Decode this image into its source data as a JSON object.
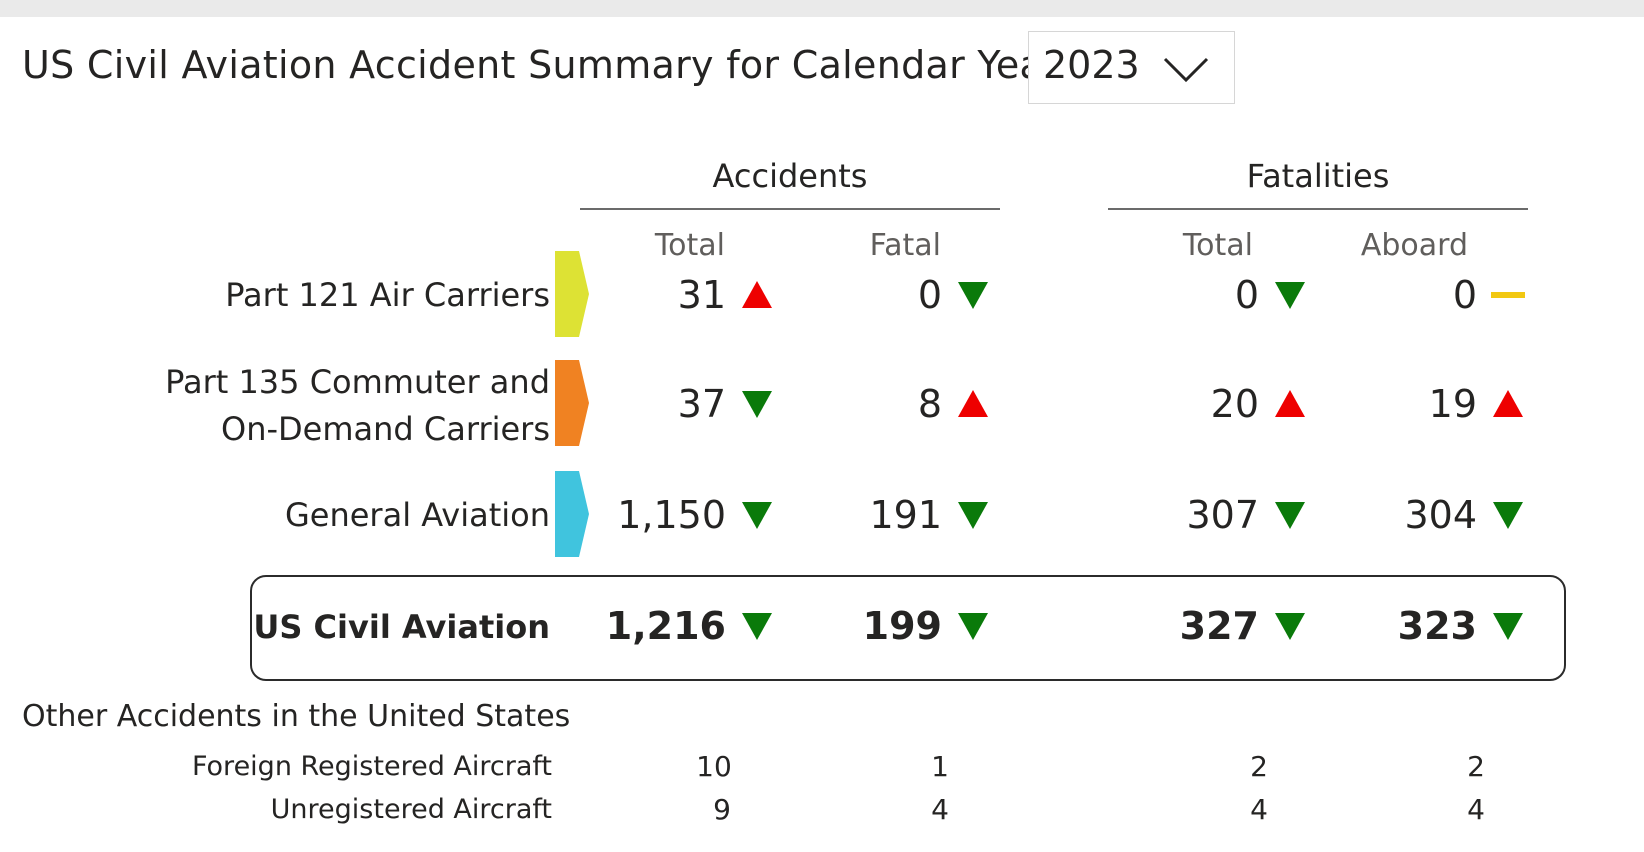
{
  "header": {
    "title": "US Civil Aviation Accident Summary for Calendar Year",
    "year_select": {
      "selected": "2023"
    }
  },
  "groups": {
    "accidents": "Accidents",
    "fatalities": "Fatalities"
  },
  "columns": {
    "acc_total": "Total",
    "acc_fatal": "Fatal",
    "fat_total": "Total",
    "fat_aboard": "Aboard"
  },
  "colors": {
    "up": "#ee0000",
    "down": "#0a7a0a",
    "flat": "#f2c811",
    "part121": "#dde234",
    "part135": "#f08222",
    "general": "#40c4de"
  },
  "rows": [
    {
      "label_lines": [
        "Part 121 Air Carriers"
      ],
      "color": "part121",
      "acc_total": {
        "value": "31",
        "trend": "up"
      },
      "acc_fatal": {
        "value": "0",
        "trend": "down"
      },
      "fat_total": {
        "value": "0",
        "trend": "down"
      },
      "fat_aboard": {
        "value": "0",
        "trend": "flat"
      }
    },
    {
      "label_lines": [
        "Part 135 Commuter and",
        "On-Demand Carriers"
      ],
      "color": "part135",
      "acc_total": {
        "value": "37",
        "trend": "down"
      },
      "acc_fatal": {
        "value": "8",
        "trend": "up"
      },
      "fat_total": {
        "value": "20",
        "trend": "up"
      },
      "fat_aboard": {
        "value": "19",
        "trend": "up"
      }
    },
    {
      "label_lines": [
        "General Aviation"
      ],
      "color": "general",
      "acc_total": {
        "value": "1,150",
        "trend": "down"
      },
      "acc_fatal": {
        "value": "191",
        "trend": "down"
      },
      "fat_total": {
        "value": "307",
        "trend": "down"
      },
      "fat_aboard": {
        "value": "304",
        "trend": "down"
      }
    }
  ],
  "total": {
    "label": "US Civil Aviation",
    "acc_total": {
      "value": "1,216",
      "trend": "down"
    },
    "acc_fatal": {
      "value": "199",
      "trend": "down"
    },
    "fat_total": {
      "value": "327",
      "trend": "down"
    },
    "fat_aboard": {
      "value": "323",
      "trend": "down"
    }
  },
  "other": {
    "title": "Other Accidents in the United States",
    "rows": [
      {
        "label": "Foreign Registered Aircraft",
        "acc_total": "10",
        "acc_fatal": "1",
        "fat_total": "2",
        "fat_aboard": "2"
      },
      {
        "label": "Unregistered Aircraft",
        "acc_total": "9",
        "acc_fatal": "4",
        "fat_total": "4",
        "fat_aboard": "4"
      }
    ]
  }
}
